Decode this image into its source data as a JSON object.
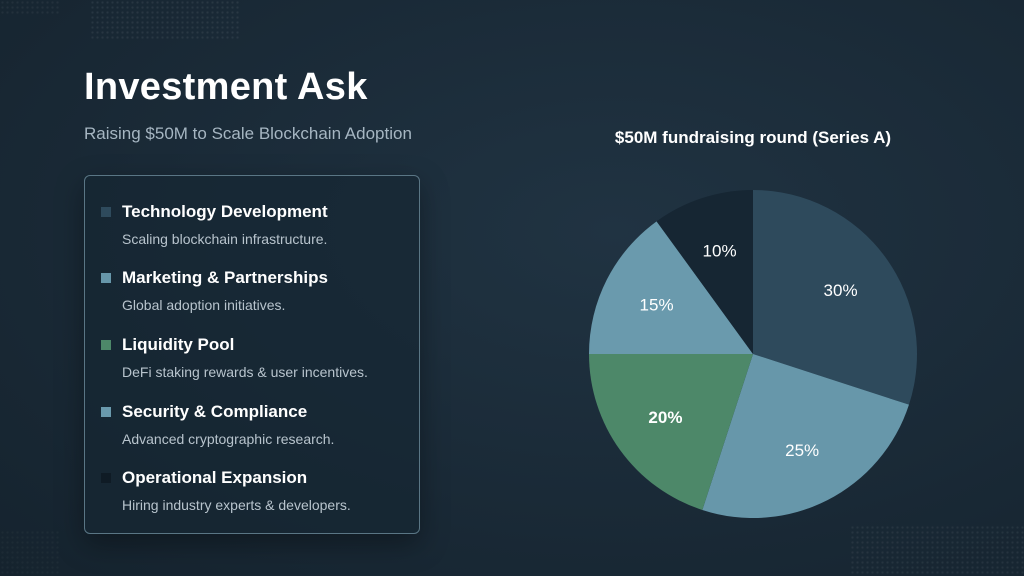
{
  "title": "Investment Ask",
  "subtitle": "Raising $50M to Scale Blockchain Adoption",
  "allocations": [
    {
      "title": "Technology Development",
      "description": "Scaling blockchain infrastructure.",
      "color": "#2e4a5c"
    },
    {
      "title": "Marketing & Partnerships",
      "description": "Global adoption initiatives.",
      "color": "#6797aa"
    },
    {
      "title": "Liquidity Pool",
      "description": "DeFi staking rewards & user incentives.",
      "color": "#4d8869"
    },
    {
      "title": "Security & Compliance",
      "description": "Advanced cryptographic research.",
      "color": "#6a9aad"
    },
    {
      "title": "Operational Expansion",
      "description": "Hiring industry experts & developers.",
      "color": "#0f1b25"
    }
  ],
  "chart_data": {
    "type": "pie",
    "title": "$50M fundraising round (Series A)",
    "slices": [
      {
        "label": "30%",
        "value": 30,
        "color": "#2e4a5c"
      },
      {
        "label": "25%",
        "value": 25,
        "color": "#6797aa"
      },
      {
        "label": "20%",
        "value": 20,
        "color": "#4d8869"
      },
      {
        "label": "15%",
        "value": 15,
        "color": "#6a9aad"
      },
      {
        "label": "10%",
        "value": 10,
        "color": "#162633"
      }
    ]
  }
}
